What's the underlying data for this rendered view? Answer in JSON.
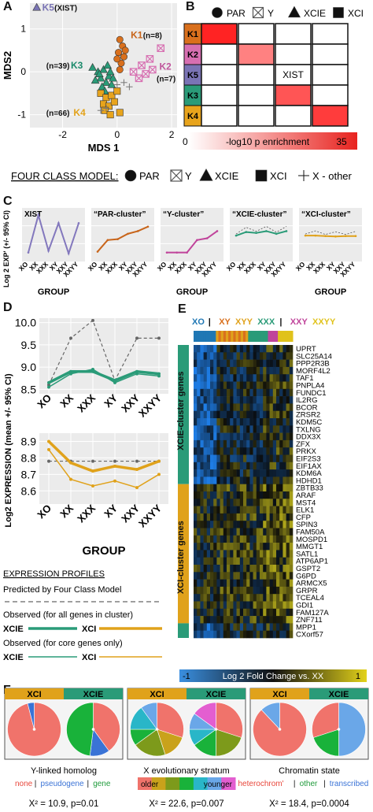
{
  "panel_labels": {
    "a": "A",
    "b": "B",
    "c": "C",
    "d": "D",
    "e": "E",
    "f": "F"
  },
  "mds": {
    "xlabel": "MDS 1",
    "ylabel": "MDS2",
    "x_ticks": [
      "-2",
      "0",
      "2"
    ],
    "y_ticks": [
      "1",
      "0",
      "-1"
    ],
    "xlim": [
      -3.2,
      2.2
    ],
    "ylim": [
      -1.3,
      1.6
    ],
    "labels": [
      {
        "text": "K5",
        "color": "#7a74b5",
        "x": -2.75,
        "y": 1.5
      },
      {
        "text": "(XIST)",
        "color": "#111111",
        "x": -2.3,
        "y": 1.5
      },
      {
        "text": "K1",
        "color": "#c8651b",
        "x": 0.5,
        "y": 0.86
      },
      {
        "text": "(n=8)",
        "color": "#111111",
        "x": 0.95,
        "y": 0.86
      },
      {
        "text": "(n=39)",
        "color": "#111111",
        "x": -2.6,
        "y": 0.15
      },
      {
        "text": "K3",
        "color": "#1b8a6b",
        "x": -1.7,
        "y": 0.15
      },
      {
        "text": "K2",
        "color": "#c0559c",
        "x": 1.55,
        "y": 0.12
      },
      {
        "text": "(n=7)",
        "color": "#111111",
        "x": 1.45,
        "y": -0.15
      },
      {
        "text": "(n=66)",
        "color": "#111111",
        "x": -2.6,
        "y": -0.95
      },
      {
        "text": "K4",
        "color": "#e2a21b",
        "x": -1.6,
        "y": -0.95
      }
    ],
    "clusters": [
      {
        "name": "K1",
        "color": "#d9701d",
        "shape": "circle",
        "points": [
          [
            0.1,
            0.75
          ],
          [
            0.2,
            0.6
          ],
          [
            0.05,
            0.45
          ],
          [
            0.25,
            0.35
          ],
          [
            0.15,
            0.2
          ],
          [
            0.0,
            0.3
          ],
          [
            0.3,
            0.5
          ],
          [
            0.1,
            0.05
          ]
        ]
      },
      {
        "name": "K2",
        "color": "#d76fb1",
        "shape": "box-x",
        "points": [
          [
            1.6,
            0.55
          ],
          [
            1.2,
            0.3
          ],
          [
            0.9,
            0.15
          ],
          [
            1.05,
            -0.05
          ],
          [
            0.6,
            0.0
          ],
          [
            1.3,
            0.05
          ],
          [
            0.8,
            -0.15
          ]
        ]
      },
      {
        "name": "K3",
        "color": "#2a9b78",
        "shape": "triangle",
        "points": [
          [
            -0.9,
            0.1
          ],
          [
            -0.7,
            0.0
          ],
          [
            -0.6,
            -0.15
          ],
          [
            -0.5,
            0.05
          ],
          [
            -0.4,
            -0.25
          ],
          [
            -0.3,
            -0.1
          ],
          [
            -0.55,
            -0.35
          ],
          [
            -0.2,
            -0.3
          ],
          [
            -0.8,
            -0.2
          ],
          [
            -0.35,
            0.15
          ],
          [
            -0.65,
            -0.05
          ],
          [
            -0.15,
            -0.15
          ],
          [
            -0.45,
            -0.45
          ],
          [
            -0.25,
            0.0
          ]
        ]
      },
      {
        "name": "K4",
        "color": "#e8a41c",
        "shape": "square",
        "points": [
          [
            -0.6,
            -0.5
          ],
          [
            -0.4,
            -0.6
          ],
          [
            -0.5,
            -0.75
          ],
          [
            -0.3,
            -0.8
          ],
          [
            -0.2,
            -0.55
          ],
          [
            -0.1,
            -0.7
          ],
          [
            -0.45,
            -0.9
          ],
          [
            0.0,
            -0.45
          ],
          [
            -0.25,
            -1.0
          ],
          [
            0.1,
            -0.95
          ]
        ]
      },
      {
        "name": "K5",
        "color": "#7a74b5",
        "shape": "triangle",
        "points": [
          [
            -2.95,
            1.5
          ]
        ]
      },
      {
        "name": "X-other",
        "color": "#777777",
        "shape": "plus",
        "points": [
          [
            -0.6,
            -0.9
          ],
          [
            -0.4,
            -0.85
          ],
          [
            0.0,
            -0.3
          ],
          [
            0.25,
            -0.25
          ],
          [
            0.45,
            -0.35
          ]
        ]
      }
    ]
  },
  "legend_top": {
    "items": [
      "PAR",
      "Y",
      "XCIE",
      "XCI"
    ]
  },
  "enrichment": {
    "rows": [
      {
        "name": "K1",
        "color": "#d9701d"
      },
      {
        "name": "K2",
        "color": "#d76fb1"
      },
      {
        "name": "K5",
        "color": "#7a74b5"
      },
      {
        "name": "K3",
        "color": "#2a9b78"
      },
      {
        "name": "K4",
        "color": "#e8a41c"
      }
    ],
    "matrix": [
      [
        35,
        0,
        0,
        0
      ],
      [
        0,
        20,
        0,
        0
      ],
      [
        0,
        0,
        0,
        0
      ],
      [
        0,
        0,
        27,
        0
      ],
      [
        0,
        0,
        0,
        31
      ]
    ],
    "annotation": {
      "row": 2,
      "col": 2,
      "text": "XIST"
    },
    "scale_min": "0",
    "scale_max": "35",
    "scale_label": "-log10 p enrichment"
  },
  "four_class": {
    "title": "FOUR CLASS MODEL:",
    "items": [
      "PAR",
      "Y",
      "XCIE",
      "XCI",
      "X - other"
    ]
  },
  "profiles": {
    "ylabel": "Log 2 EXP' (+/- 95% CI)",
    "xlabel": "GROUP",
    "groups": [
      "XO",
      "XX",
      "XXX",
      "XY",
      "XXY",
      "XXYY"
    ],
    "panels": [
      {
        "title": "XIST",
        "color": "#8378bd",
        "values": [
          7.0,
          11.2,
          7.2,
          10.3,
          6.9,
          10.3
        ]
      },
      {
        "title": "“PAR-cluster”",
        "color": "#c8651b",
        "values": [
          7.1,
          8.4,
          8.5,
          9.1,
          9.4,
          9.9
        ]
      },
      {
        "title": "“Y-cluster”",
        "color": "#c0449b",
        "values": [
          7.0,
          7.0,
          7.0,
          8.4,
          8.6,
          9.4
        ]
      },
      {
        "title": "“XCIE-cluster”",
        "color": "#2a9b78",
        "values": [
          8.9,
          9.3,
          9.2,
          9.4,
          9.1,
          9.4
        ]
      },
      {
        "title": "“XCI-cluster”",
        "color": "#e0a21b",
        "values": [
          8.9,
          8.9,
          8.85,
          8.8,
          8.85,
          8.85
        ]
      }
    ],
    "ylim": [
      6,
      12
    ]
  },
  "chart_data": [
    {
      "type": "line",
      "title": "",
      "xlabel": "GROUP",
      "ylabel": "Log2 EXPRESSION (mean +/- 95% CI)",
      "categories": [
        "XO",
        "XX",
        "XXX",
        "XY",
        "XXY",
        "XXYY"
      ],
      "ylim": [
        8.4,
        10.1
      ],
      "y_ticks": [
        "10.0",
        "9.5",
        "9.0",
        "8.5"
      ],
      "series": [
        {
          "style": "predicted",
          "color": "#666666",
          "values": [
            8.6,
            9.65,
            10.05,
            8.7,
            9.65,
            9.65
          ]
        },
        {
          "style": "observed-all",
          "color": "#2a9b78",
          "values": [
            8.65,
            8.9,
            8.9,
            8.7,
            8.9,
            8.85
          ]
        },
        {
          "style": "observed-core",
          "color": "#2a9b78",
          "values": [
            8.55,
            8.85,
            8.95,
            8.65,
            8.85,
            8.8
          ]
        }
      ]
    },
    {
      "type": "line",
      "title": "",
      "xlabel": "GROUP",
      "ylabel": "",
      "categories": [
        "XO",
        "XX",
        "XXX",
        "XY",
        "XXY",
        "XXYY"
      ],
      "ylim": [
        8.52,
        8.95
      ],
      "y_ticks": [
        "8.9",
        "8.8",
        "8.7",
        "8.6"
      ],
      "series": [
        {
          "style": "predicted",
          "color": "#666666",
          "values": [
            8.78,
            8.78,
            8.78,
            8.78,
            8.78,
            8.78
          ]
        },
        {
          "style": "observed-all",
          "color": "#e0a21b",
          "values": [
            8.9,
            8.77,
            8.72,
            8.75,
            8.73,
            8.78
          ]
        },
        {
          "style": "observed-core",
          "color": "#e0a21b",
          "values": [
            8.85,
            8.67,
            8.63,
            8.66,
            8.62,
            8.7
          ]
        }
      ]
    }
  ],
  "legend_d": {
    "title": "EXPRESSION PROFILES",
    "predicted": "Predicted by Four Class Model",
    "observed_all": "Observed (for all genes in cluster)",
    "observed_core": "Observed (for core genes only)",
    "xcie": "XCIE",
    "xci": "XCI"
  },
  "heatmap": {
    "groups": [
      {
        "text": "XO",
        "color": "#1f77b4"
      },
      {
        "text": "|",
        "color": "#111111"
      },
      {
        "text": "XY",
        "color": "#d9701d"
      },
      {
        "text": "XYY",
        "color": "#e0a21b"
      },
      {
        "text": "XXX",
        "color": "#2a9b78"
      },
      {
        "text": "|",
        "color": "#111111"
      },
      {
        "text": "XXY",
        "color": "#c0449b"
      },
      {
        "text": "XXYY",
        "color": "#e0c21b"
      }
    ],
    "xcie_label": "XCIE-cluster genes",
    "xci_label": "XCI-cluster genes",
    "genes": [
      "UPRT",
      "SLC25A14",
      "PPP2R3B",
      "MORF4L2",
      "TAF1",
      "PNPLA4",
      "FUNDC1",
      "IL2RG",
      "BCOR",
      "ZRSR2",
      "KDM5C",
      "TXLNG",
      "DDX3X",
      "ZFX",
      "PRKX",
      "EIF2S3",
      "EIF1AX",
      "KDM6A",
      "HDHD1",
      "ZBTB33",
      "ARAF",
      "MST4",
      "ELK1",
      "CFP",
      "SPIN3",
      "FAM50A",
      "MOSPD1",
      "MMGT1",
      "SATL1",
      "ATP6AP1",
      "GSPT2",
      "G6PD",
      "ARMCX5",
      "GRPR",
      "TCEAL4",
      "GDI1",
      "FAM127A",
      "ZNF711",
      "MPP1",
      "CXorf57"
    ],
    "scale_min": "-1",
    "scale_max": "1",
    "scale_label": "Log 2 Fold Change vs. XX"
  },
  "pies": [
    {
      "caption": "Y-linked homolog",
      "legend": [
        {
          "text": "none",
          "color": "#e8473b"
        },
        {
          "text": "|",
          "color": "#111111"
        },
        {
          "text": "pseudogene",
          "color": "#3a73d6"
        },
        {
          "text": "|",
          "color": "#111111"
        },
        {
          "text": "gene",
          "color": "#1e9a3a"
        }
      ],
      "stat": "X² = 10.9, p=0.01",
      "left": {
        "label": "XCI",
        "slices": [
          {
            "v": 96,
            "c": "#f0736b"
          },
          {
            "v": 4,
            "c": "#3a73d6"
          }
        ]
      },
      "right": {
        "label": "XCIE",
        "slices": [
          {
            "v": 40,
            "c": "#f0736b"
          },
          {
            "v": 12,
            "c": "#3a73d6"
          },
          {
            "v": 48,
            "c": "#19b23a"
          }
        ]
      }
    },
    {
      "caption": "X evolutionary stratum",
      "legend": [
        {
          "text": "older",
          "color": "#111111"
        },
        {
          "text": "younger",
          "color": "#111111"
        }
      ],
      "stat": "X² = 22.6, p=0.007",
      "left": {
        "label": "XCI",
        "slices": [
          {
            "v": 30,
            "c": "#f0736b"
          },
          {
            "v": 15,
            "c": "#c9a21b"
          },
          {
            "v": 20,
            "c": "#7d9a1b"
          },
          {
            "v": 10,
            "c": "#19b23a"
          },
          {
            "v": 15,
            "c": "#29b6c8"
          },
          {
            "v": 10,
            "c": "#6aa7e8"
          }
        ]
      },
      "right": {
        "label": "XCIE",
        "slices": [
          {
            "v": 30,
            "c": "#f0736b"
          },
          {
            "v": 20,
            "c": "#7d9a1b"
          },
          {
            "v": 15,
            "c": "#19b23a"
          },
          {
            "v": 10,
            "c": "#29b6c8"
          },
          {
            "v": 10,
            "c": "#6aa7e8"
          },
          {
            "v": 15,
            "c": "#e35ed0"
          }
        ]
      }
    },
    {
      "caption": "Chromatin state",
      "legend": [
        {
          "text": "heterochrom'",
          "color": "#e8473b"
        },
        {
          "text": "|",
          "color": "#111111"
        },
        {
          "text": "other",
          "color": "#1e9a3a"
        },
        {
          "text": "|",
          "color": "#111111"
        },
        {
          "text": "transcribed",
          "color": "#3a73d6"
        }
      ],
      "stat": "X² = 18.4, p=0.0004",
      "left": {
        "label": "XCI",
        "slices": [
          {
            "v": 88,
            "c": "#f0736b"
          },
          {
            "v": 12,
            "c": "#6aa7e8"
          }
        ]
      },
      "right": {
        "label": "XCIE",
        "slices": [
          {
            "v": 50,
            "c": "#6aa7e8"
          },
          {
            "v": 20,
            "c": "#19b23a"
          },
          {
            "v": 30,
            "c": "#f0736b"
          }
        ]
      }
    }
  ],
  "stratum_bar": [
    "#f0736b",
    "#c9a21b",
    "#7d9a1b",
    "#19b23a",
    "#29b6c8",
    "#6aa7e8",
    "#e35ed0"
  ]
}
